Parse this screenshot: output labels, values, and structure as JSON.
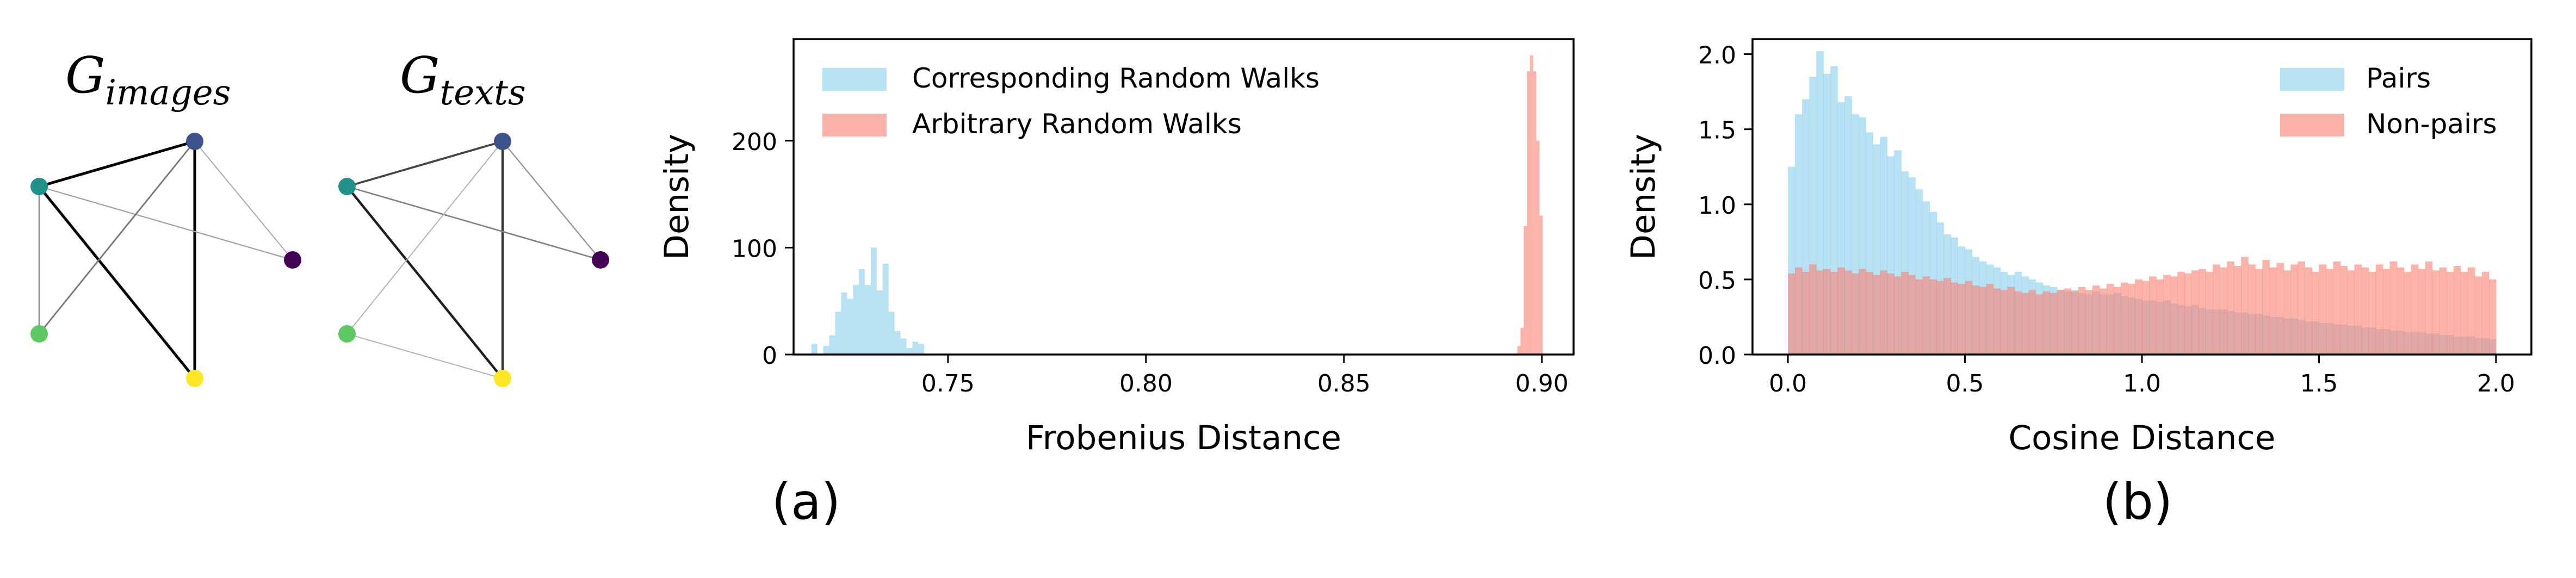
{
  "graphs": [
    {
      "title_main": "G",
      "title_sub": "images",
      "nodes": [
        {
          "id": "a",
          "color": "#21918c"
        },
        {
          "id": "b",
          "color": "#3b528b"
        },
        {
          "id": "c",
          "color": "#440154"
        },
        {
          "id": "d",
          "color": "#5ec962"
        },
        {
          "id": "e",
          "color": "#fde725"
        }
      ],
      "edges": [
        {
          "from": "a",
          "to": "b",
          "weight": 1.0
        },
        {
          "from": "a",
          "to": "e",
          "weight": 1.0
        },
        {
          "from": "b",
          "to": "e",
          "weight": 1.0
        },
        {
          "from": "a",
          "to": "c",
          "weight": 0.2
        },
        {
          "from": "b",
          "to": "d",
          "weight": 0.4
        },
        {
          "from": "a",
          "to": "d",
          "weight": 0.3
        },
        {
          "from": "b",
          "to": "c",
          "weight": 0.15
        }
      ]
    },
    {
      "title_main": "G",
      "title_sub": "texts",
      "nodes": [
        {
          "id": "a",
          "color": "#21918c"
        },
        {
          "id": "b",
          "color": "#3b528b"
        },
        {
          "id": "c",
          "color": "#440154"
        },
        {
          "id": "d",
          "color": "#5ec962"
        },
        {
          "id": "e",
          "color": "#fde725"
        }
      ],
      "edges": [
        {
          "from": "a",
          "to": "b",
          "weight": 0.65
        },
        {
          "from": "a",
          "to": "e",
          "weight": 0.85
        },
        {
          "from": "b",
          "to": "e",
          "weight": 0.75
        },
        {
          "from": "a",
          "to": "c",
          "weight": 0.35
        },
        {
          "from": "b",
          "to": "d",
          "weight": 0.12
        },
        {
          "from": "d",
          "to": "e",
          "weight": 0.12
        },
        {
          "from": "b",
          "to": "c",
          "weight": 0.25
        }
      ]
    }
  ],
  "panel_labels": [
    "(a)",
    "(b)"
  ],
  "chart_data": [
    {
      "type": "histogram",
      "xlabel": "Frobenius Distance",
      "ylabel": "Density",
      "xlim": [
        0.711,
        0.908
      ],
      "ylim": [
        0,
        295
      ],
      "xticks": [
        0.75,
        0.8,
        0.85,
        0.9
      ],
      "xtick_labels": [
        "0.75",
        "0.80",
        "0.85",
        "0.90"
      ],
      "yticks": [
        0,
        100,
        200
      ],
      "ytick_labels": [
        "0",
        "100",
        "200"
      ],
      "legend": "top-left",
      "series": [
        {
          "name": "Corresponding Random Walks",
          "color": "#87ceeb",
          "bin_width": 0.0015,
          "bins": [
            [
              0.7155,
              10
            ],
            [
              0.717,
              0
            ],
            [
              0.7185,
              8
            ],
            [
              0.72,
              18
            ],
            [
              0.7215,
              40
            ],
            [
              0.723,
              58
            ],
            [
              0.7245,
              52
            ],
            [
              0.726,
              65
            ],
            [
              0.7275,
              80
            ],
            [
              0.729,
              65
            ],
            [
              0.7305,
              100
            ],
            [
              0.732,
              60
            ],
            [
              0.7335,
              85
            ],
            [
              0.735,
              40
            ],
            [
              0.7365,
              22
            ],
            [
              0.738,
              15
            ],
            [
              0.7395,
              6
            ],
            [
              0.741,
              12
            ],
            [
              0.7425,
              10
            ]
          ]
        },
        {
          "name": "Arbitrary Random Walks",
          "color": "#fa8072",
          "bin_width": 0.0008,
          "bins": [
            [
              0.8938,
              8
            ],
            [
              0.8946,
              25
            ],
            [
              0.8954,
              120
            ],
            [
              0.8962,
              265
            ],
            [
              0.897,
              280
            ],
            [
              0.8978,
              265
            ],
            [
              0.8986,
              200
            ],
            [
              0.8994,
              130
            ]
          ]
        }
      ]
    },
    {
      "type": "histogram",
      "xlabel": "Cosine Distance",
      "ylabel": "Density",
      "xlim": [
        -0.1,
        2.1
      ],
      "ylim": [
        0,
        2.1
      ],
      "xticks": [
        0,
        0.5,
        1,
        1.5,
        2
      ],
      "xtick_labels": [
        "0.0",
        "0.5",
        "1.0",
        "1.5",
        "2.0"
      ],
      "yticks": [
        0,
        0.5,
        1,
        1.5,
        2
      ],
      "ytick_labels": [
        "0.0",
        "0.5",
        "1.0",
        "1.5",
        "2.0"
      ],
      "legend": "top-right",
      "x_start": 0,
      "bin_width": 0.02,
      "series": [
        {
          "name": "Pairs",
          "color": "#87ceeb",
          "values": [
            1.25,
            1.6,
            1.7,
            1.85,
            2.02,
            1.87,
            1.92,
            1.68,
            1.72,
            1.6,
            1.58,
            1.48,
            1.4,
            1.45,
            1.32,
            1.36,
            1.22,
            1.18,
            1.1,
            1.02,
            0.95,
            0.88,
            0.8,
            0.78,
            0.72,
            0.7,
            0.65,
            0.62,
            0.6,
            0.58,
            0.55,
            0.53,
            0.55,
            0.52,
            0.5,
            0.48,
            0.46,
            0.45,
            0.43,
            0.42,
            0.43,
            0.41,
            0.4,
            0.42,
            0.4,
            0.4,
            0.41,
            0.39,
            0.38,
            0.37,
            0.36,
            0.36,
            0.35,
            0.36,
            0.34,
            0.33,
            0.32,
            0.33,
            0.31,
            0.3,
            0.3,
            0.3,
            0.29,
            0.28,
            0.28,
            0.27,
            0.27,
            0.26,
            0.25,
            0.25,
            0.24,
            0.24,
            0.23,
            0.22,
            0.22,
            0.21,
            0.21,
            0.2,
            0.2,
            0.19,
            0.19,
            0.18,
            0.18,
            0.17,
            0.17,
            0.16,
            0.16,
            0.15,
            0.15,
            0.15,
            0.14,
            0.14,
            0.13,
            0.13,
            0.12,
            0.12,
            0.12,
            0.11,
            0.11,
            0.1
          ]
        },
        {
          "name": "Non-pairs",
          "color": "#fa8072",
          "values": [
            0.54,
            0.58,
            0.55,
            0.6,
            0.56,
            0.57,
            0.55,
            0.58,
            0.56,
            0.54,
            0.57,
            0.55,
            0.53,
            0.56,
            0.54,
            0.52,
            0.55,
            0.53,
            0.5,
            0.52,
            0.5,
            0.49,
            0.51,
            0.48,
            0.47,
            0.49,
            0.46,
            0.45,
            0.47,
            0.44,
            0.43,
            0.45,
            0.42,
            0.41,
            0.43,
            0.4,
            0.42,
            0.41,
            0.43,
            0.44,
            0.42,
            0.45,
            0.43,
            0.46,
            0.44,
            0.47,
            0.45,
            0.48,
            0.47,
            0.5,
            0.49,
            0.52,
            0.5,
            0.53,
            0.52,
            0.55,
            0.54,
            0.56,
            0.57,
            0.55,
            0.6,
            0.58,
            0.62,
            0.59,
            0.65,
            0.6,
            0.57,
            0.63,
            0.58,
            0.61,
            0.56,
            0.6,
            0.62,
            0.58,
            0.55,
            0.6,
            0.57,
            0.62,
            0.59,
            0.56,
            0.6,
            0.58,
            0.55,
            0.6,
            0.57,
            0.62,
            0.58,
            0.55,
            0.6,
            0.57,
            0.62,
            0.56,
            0.58,
            0.55,
            0.59,
            0.55,
            0.58,
            0.52,
            0.55,
            0.5
          ]
        }
      ]
    }
  ]
}
